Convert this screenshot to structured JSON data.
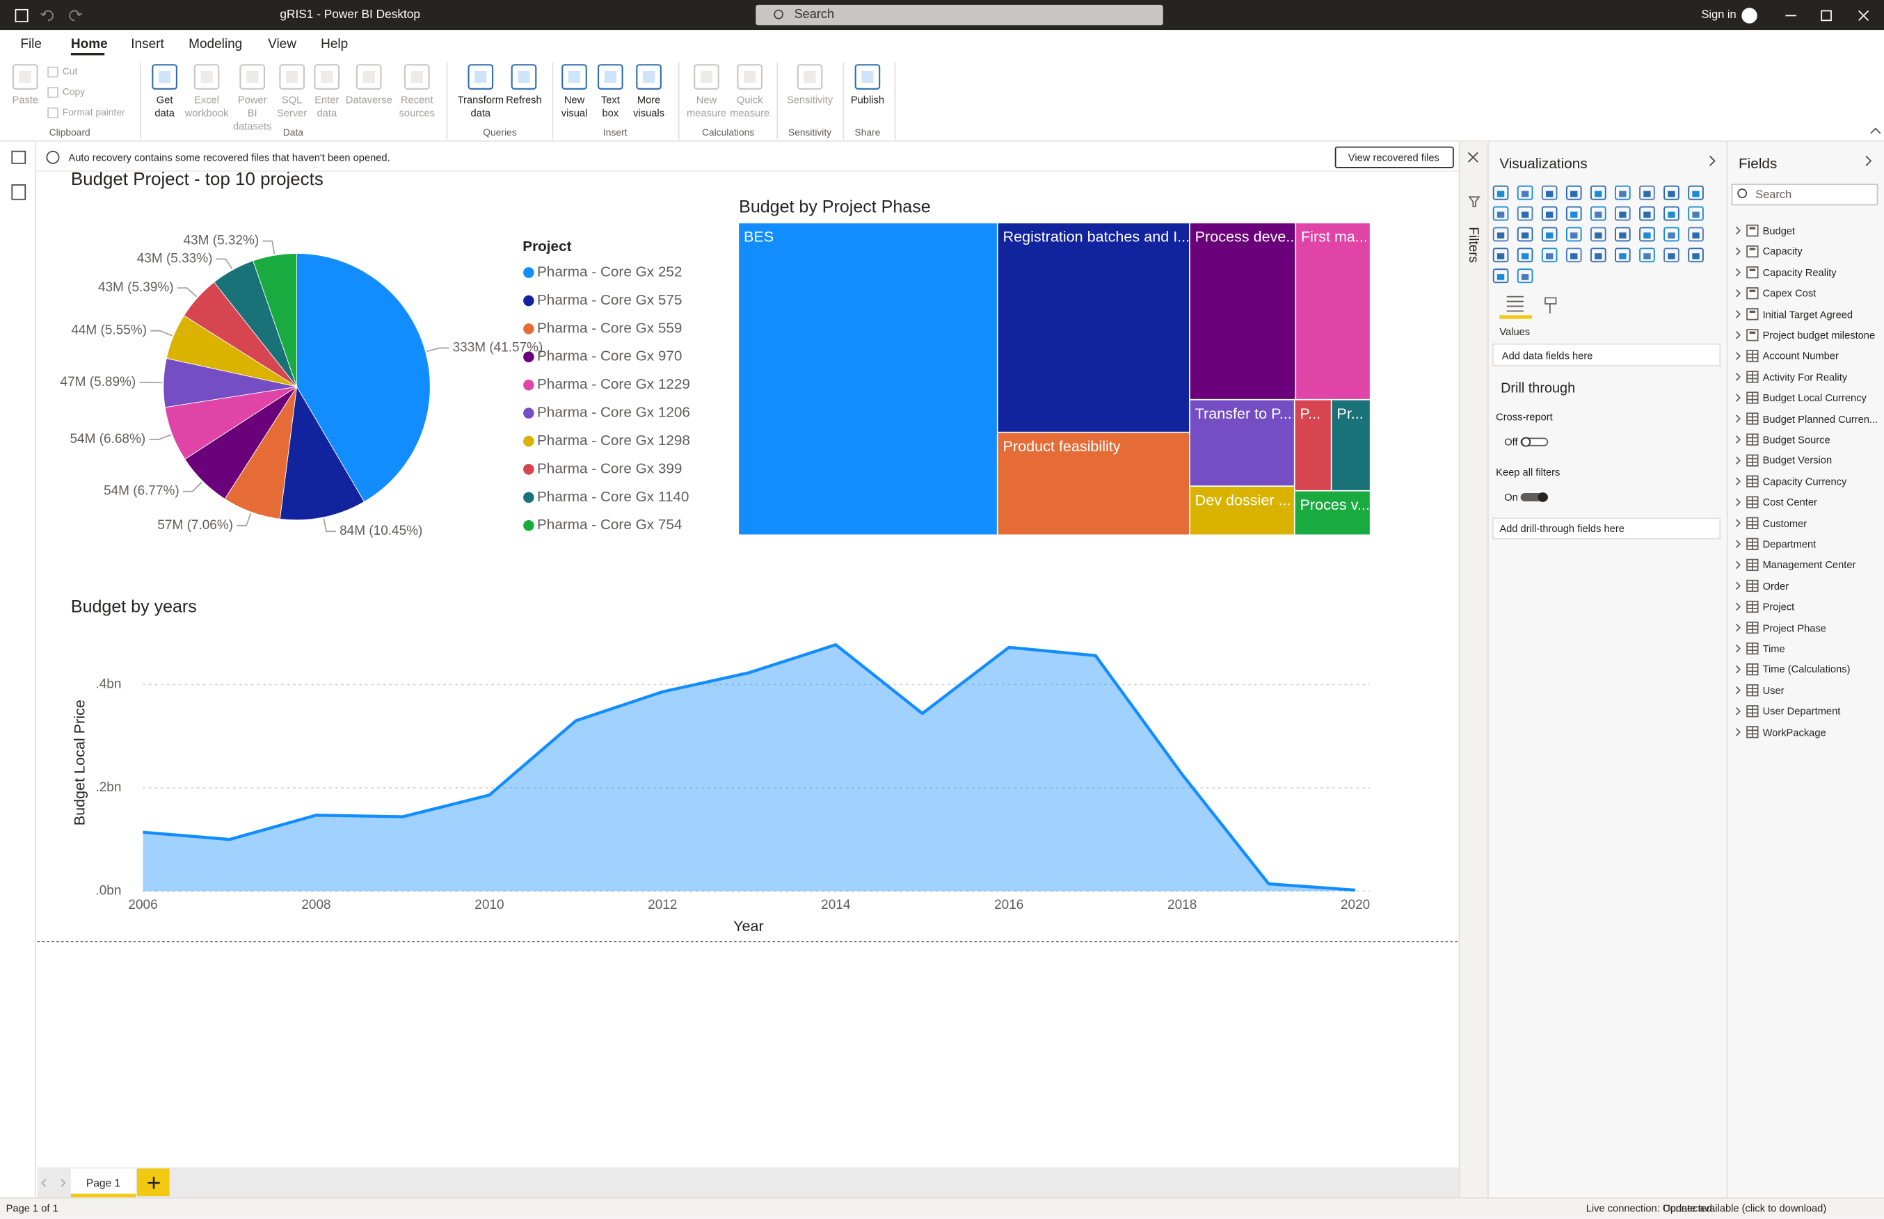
{
  "title_bar": {
    "title": "gRIS1 - Power BI Desktop",
    "search": "Search",
    "sign_in": "Sign in"
  },
  "menu": {
    "tabs": [
      "File",
      "Home",
      "Insert",
      "Modeling",
      "View",
      "Help"
    ],
    "active_tab": 1
  },
  "ribbon": {
    "groups": [
      {
        "label": "Clipboard",
        "buttons": [
          {
            "label": "Paste",
            "enabled": false
          },
          {
            "label": "Cut",
            "enabled": false
          },
          {
            "label": "Copy",
            "enabled": false
          },
          {
            "label": "Format painter",
            "enabled": false
          }
        ]
      },
      {
        "label": "Data",
        "buttons": [
          {
            "label": "Get data",
            "enabled": true
          },
          {
            "label": "Excel workbook",
            "enabled": false
          },
          {
            "label": "Power BI datasets",
            "enabled": false
          },
          {
            "label": "SQL Server",
            "enabled": false
          },
          {
            "label": "Enter data",
            "enabled": false
          },
          {
            "label": "Dataverse",
            "enabled": false
          },
          {
            "label": "Recent sources",
            "enabled": false
          }
        ]
      },
      {
        "label": "Queries",
        "buttons": [
          {
            "label": "Transform data",
            "enabled": true
          },
          {
            "label": "Refresh",
            "enabled": true
          }
        ]
      },
      {
        "label": "Insert",
        "buttons": [
          {
            "label": "New visual",
            "enabled": true
          },
          {
            "label": "Text box",
            "enabled": true
          },
          {
            "label": "More visuals",
            "enabled": true
          }
        ]
      },
      {
        "label": "Calculations",
        "buttons": [
          {
            "label": "New measure",
            "enabled": false
          },
          {
            "label": "Quick measure",
            "enabled": false
          }
        ]
      },
      {
        "label": "Sensitivity",
        "buttons": [
          {
            "label": "Sensitivity",
            "enabled": false
          }
        ]
      },
      {
        "label": "Share",
        "buttons": [
          {
            "label": "Publish",
            "enabled": true
          }
        ]
      }
    ]
  },
  "notification": {
    "message": "Auto recovery contains some recovered files that haven't been opened.",
    "button": "View recovered files"
  },
  "chart_data": [
    {
      "type": "pie",
      "title": "Budget Project - top 10 projects",
      "legend_title": "Project",
      "categories": [
        "Pharma - Core Gx 252",
        "Pharma - Core Gx 575",
        "Pharma - Core Gx 559",
        "Pharma - Core Gx 970",
        "Pharma - Core Gx 1229",
        "Pharma - Core Gx 1206",
        "Pharma - Core Gx 1298",
        "Pharma - Core Gx 399",
        "Pharma - Core Gx 1140",
        "Pharma - Core Gx 754"
      ],
      "values": [
        41.57,
        10.45,
        7.06,
        6.77,
        6.68,
        5.89,
        5.55,
        5.39,
        5.33,
        5.32
      ],
      "value_labels": [
        "333M (41.57%)",
        "84M (10.45%)",
        "57M (7.06%)",
        "54M (6.77%)",
        "54M (6.68%)",
        "47M (5.89%)",
        "44M (5.55%)",
        "43M (5.39%)",
        "43M (5.33%)",
        "43M (5.32%)"
      ],
      "colors": [
        "#118DFF",
        "#12239E",
        "#E66C37",
        "#6B007B",
        "#E044A7",
        "#744EC2",
        "#D9B300",
        "#D64550",
        "#197278",
        "#1AAB40"
      ]
    },
    {
      "type": "treemap",
      "title": "Budget by Project Phase",
      "categories": [
        "BES",
        "Registration batches and I...",
        "Product feasibility",
        "Process deve...",
        "First ma...",
        "Transfer to P...",
        "Dev dossier ...",
        "P...",
        "Pr...",
        "Proces v..."
      ],
      "values": [
        41.0,
        20.4,
        10.0,
        9.5,
        6.7,
        4.6,
        2.6,
        1.7,
        1.8,
        1.7
      ],
      "colors": [
        "#118DFF",
        "#12239E",
        "#E66C37",
        "#6B007B",
        "#E044A7",
        "#744EC2",
        "#D9B300",
        "#D64550",
        "#197278",
        "#1AAB40"
      ]
    },
    {
      "type": "area",
      "title": "Budget by years",
      "x_label": "Year",
      "y_label": "Budget Local Price",
      "x": [
        2006,
        2007,
        2008,
        2009,
        2010,
        2011,
        2012,
        2013,
        2014,
        2015,
        2016,
        2017,
        2018,
        2019,
        2020
      ],
      "values": [
        0.114,
        0.1,
        0.147,
        0.144,
        0.186,
        0.33,
        0.386,
        0.423,
        0.477,
        0.344,
        0.472,
        0.456,
        0.226,
        0.014,
        0.002
      ],
      "color": "#118DFF",
      "xlim": [
        2006,
        2020
      ],
      "xticks": [
        2006,
        2008,
        2010,
        2012,
        2014,
        2016,
        2018,
        2020
      ],
      "ylim": [
        0,
        0.48
      ],
      "yticks": [
        {
          "value": 0,
          "label": ".0bn"
        },
        {
          "value": 0.2,
          "label": ".2bn"
        },
        {
          "value": 0.4,
          "label": ".4bn"
        }
      ],
      "grid": true
    }
  ],
  "filters": {
    "title": "Filters"
  },
  "visualizations": {
    "title": "Visualizations",
    "values_label": "Values",
    "values_placeholder": "Add data fields here",
    "drill_through": {
      "title": "Drill through",
      "cross_report": {
        "label": "Cross-report",
        "state": "Off",
        "on": false
      },
      "keep_all_filters": {
        "label": "Keep all filters",
        "state": "On",
        "on": true
      },
      "placeholder": "Add drill-through fields here"
    }
  },
  "fields": {
    "title": "Fields",
    "search": "Search",
    "items": [
      {
        "name": "Budget",
        "kind": "measure"
      },
      {
        "name": "Capacity",
        "kind": "measure"
      },
      {
        "name": "Capacity Reality",
        "kind": "measure"
      },
      {
        "name": "Capex Cost",
        "kind": "measure"
      },
      {
        "name": "Initial Target Agreed",
        "kind": "measure"
      },
      {
        "name": "Project budget milestone",
        "kind": "measure"
      },
      {
        "name": "Account Number",
        "kind": "table"
      },
      {
        "name": "Activity For Reality",
        "kind": "table"
      },
      {
        "name": "Budget Local Currency",
        "kind": "table"
      },
      {
        "name": "Budget Planned Curren...",
        "kind": "table"
      },
      {
        "name": "Budget Source",
        "kind": "table"
      },
      {
        "name": "Budget Version",
        "kind": "table"
      },
      {
        "name": "Capacity Currency",
        "kind": "table"
      },
      {
        "name": "Cost Center",
        "kind": "table"
      },
      {
        "name": "Customer",
        "kind": "table"
      },
      {
        "name": "Department",
        "kind": "table"
      },
      {
        "name": "Management Center",
        "kind": "table"
      },
      {
        "name": "Order",
        "kind": "table"
      },
      {
        "name": "Project",
        "kind": "table"
      },
      {
        "name": "Project Phase",
        "kind": "table"
      },
      {
        "name": "Time",
        "kind": "table"
      },
      {
        "name": "Time (Calculations)",
        "kind": "table"
      },
      {
        "name": "User",
        "kind": "table"
      },
      {
        "name": "User Department",
        "kind": "table"
      },
      {
        "name": "WorkPackage",
        "kind": "table"
      }
    ]
  },
  "pages": {
    "tabs": [
      "Page 1"
    ]
  },
  "status_bar": {
    "page_info": "Page 1 of 1",
    "connection": "Live connection: Connected",
    "update": "Update available (click to download)"
  }
}
